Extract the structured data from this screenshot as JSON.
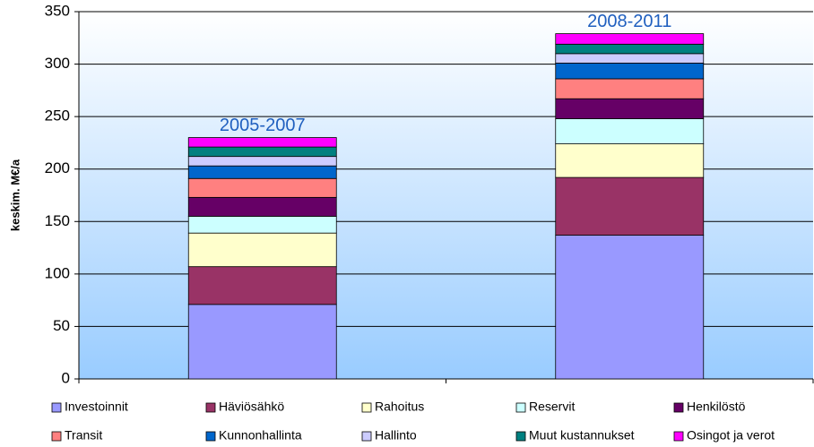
{
  "chart_data": {
    "type": "stacked_bar",
    "y_label": "keskim. M€/a",
    "categories": [
      "2005-2007",
      "2008-2011"
    ],
    "series": [
      {
        "name": "Investoinnit",
        "color": "#9999ff",
        "values": [
          71,
          137
        ]
      },
      {
        "name": "Häviösähkö",
        "color": "#993366",
        "values": [
          36,
          55
        ]
      },
      {
        "name": "Rahoitus",
        "color": "#ffffcc",
        "values": [
          32,
          32
        ]
      },
      {
        "name": "Reservit",
        "color": "#ccffff",
        "values": [
          16,
          24
        ]
      },
      {
        "name": "Henkilöstö",
        "color": "#660066",
        "values": [
          18,
          19
        ]
      },
      {
        "name": "Transit",
        "color": "#ff8080",
        "values": [
          18,
          19
        ]
      },
      {
        "name": "Kunnonhallinta",
        "color": "#0066cc",
        "values": [
          12,
          15
        ]
      },
      {
        "name": "Hallinto",
        "color": "#ccccff",
        "values": [
          9,
          9
        ]
      },
      {
        "name": "Muut kustannukset",
        "color": "#008080",
        "values": [
          9,
          9
        ]
      },
      {
        "name": "Osingot ja verot",
        "color": "#ff00ff",
        "values": [
          9,
          10
        ]
      }
    ],
    "ylim": [
      0,
      350
    ],
    "yticks": [
      0,
      50,
      100,
      150,
      200,
      250,
      300,
      350
    ],
    "grid": true
  }
}
